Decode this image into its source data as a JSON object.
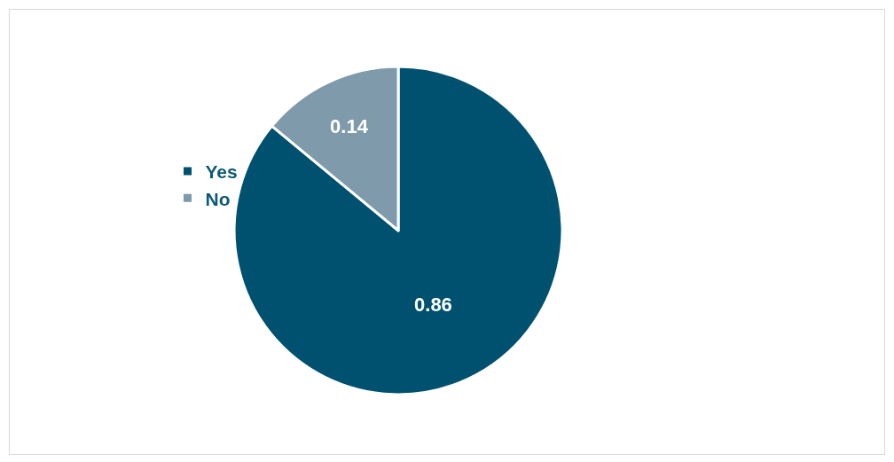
{
  "chart_data": {
    "type": "pie",
    "categories": [
      "Yes",
      "No"
    ],
    "values": [
      0.86,
      0.14
    ],
    "colors": [
      "#00516f",
      "#7f9aab"
    ],
    "data_labels": true,
    "legend": "left"
  }
}
